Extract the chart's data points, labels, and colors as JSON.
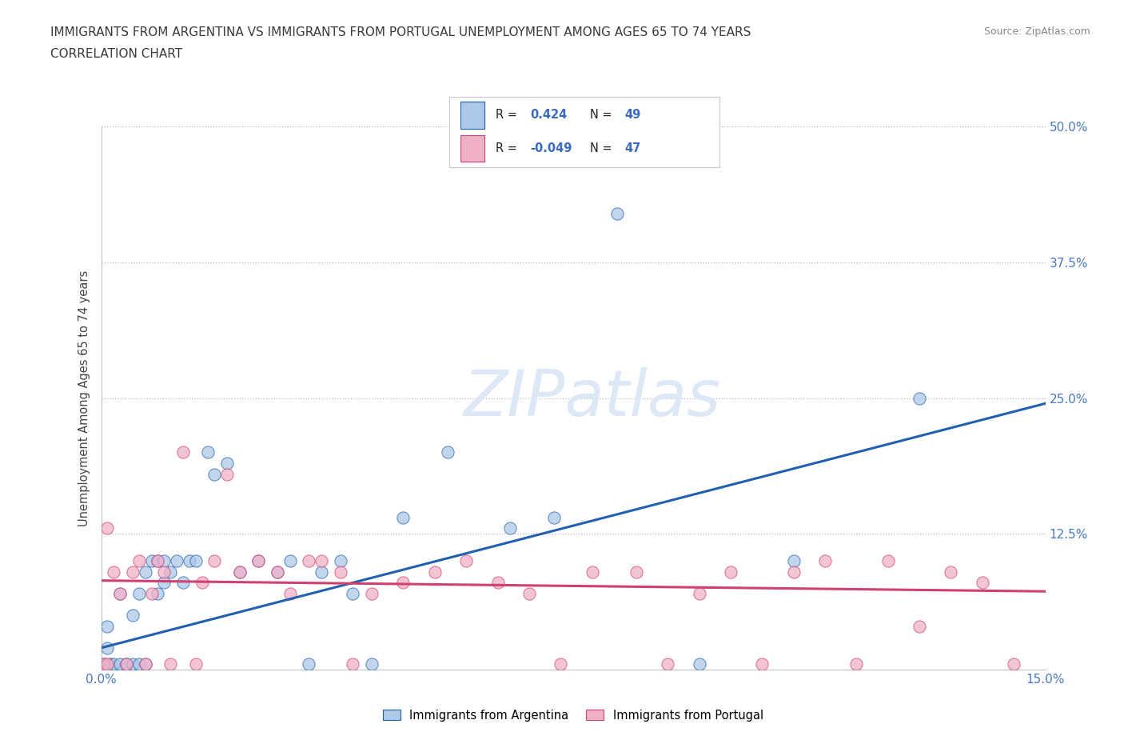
{
  "title_line1": "IMMIGRANTS FROM ARGENTINA VS IMMIGRANTS FROM PORTUGAL UNEMPLOYMENT AMONG AGES 65 TO 74 YEARS",
  "title_line2": "CORRELATION CHART",
  "source_text": "Source: ZipAtlas.com",
  "ylabel": "Unemployment Among Ages 65 to 74 years",
  "xlim": [
    0.0,
    0.15
  ],
  "ylim": [
    0.0,
    0.5
  ],
  "xticks": [
    0.0,
    0.025,
    0.05,
    0.075,
    0.1,
    0.125,
    0.15
  ],
  "xtick_labels": [
    "0.0%",
    "",
    "",
    "",
    "",
    "",
    "15.0%"
  ],
  "ytick_labels": [
    "",
    "12.5%",
    "25.0%",
    "37.5%",
    "50.0%"
  ],
  "yticks": [
    0.0,
    0.125,
    0.25,
    0.375,
    0.5
  ],
  "r_argentina": 0.424,
  "n_argentina": 49,
  "r_portugal": -0.049,
  "n_portugal": 47,
  "color_argentina": "#adc8e8",
  "color_portugal": "#f0b0c8",
  "line_color_argentina": "#2060b0",
  "line_color_portugal": "#d04070",
  "watermark_color": "#dce8f5",
  "title_color": "#3a3a3a",
  "axis_color": "#4878c0",
  "legend_n_color": "#3a6abf",
  "argentina_x": [
    0.0005,
    0.0008,
    0.001,
    0.001,
    0.001,
    0.001,
    0.0015,
    0.002,
    0.002,
    0.003,
    0.003,
    0.004,
    0.004,
    0.005,
    0.005,
    0.006,
    0.006,
    0.007,
    0.007,
    0.008,
    0.009,
    0.009,
    0.01,
    0.01,
    0.011,
    0.012,
    0.013,
    0.014,
    0.015,
    0.017,
    0.018,
    0.02,
    0.022,
    0.025,
    0.028,
    0.03,
    0.033,
    0.035,
    0.038,
    0.04,
    0.043,
    0.048,
    0.055,
    0.065,
    0.072,
    0.082,
    0.095,
    0.11,
    0.13
  ],
  "argentina_y": [
    0.005,
    0.0,
    0.0,
    0.02,
    0.0,
    0.04,
    0.005,
    0.0,
    0.005,
    0.005,
    0.07,
    0.005,
    0.005,
    0.05,
    0.005,
    0.07,
    0.005,
    0.09,
    0.005,
    0.1,
    0.07,
    0.1,
    0.08,
    0.1,
    0.09,
    0.1,
    0.08,
    0.1,
    0.1,
    0.2,
    0.18,
    0.19,
    0.09,
    0.1,
    0.09,
    0.1,
    0.005,
    0.09,
    0.1,
    0.07,
    0.005,
    0.14,
    0.2,
    0.13,
    0.14,
    0.42,
    0.005,
    0.1,
    0.25
  ],
  "portugal_x": [
    0.0005,
    0.001,
    0.001,
    0.002,
    0.003,
    0.004,
    0.005,
    0.006,
    0.007,
    0.008,
    0.009,
    0.01,
    0.011,
    0.013,
    0.015,
    0.016,
    0.018,
    0.02,
    0.022,
    0.025,
    0.028,
    0.03,
    0.033,
    0.035,
    0.038,
    0.04,
    0.043,
    0.048,
    0.053,
    0.058,
    0.063,
    0.068,
    0.073,
    0.078,
    0.085,
    0.09,
    0.095,
    0.1,
    0.105,
    0.11,
    0.115,
    0.12,
    0.125,
    0.13,
    0.135,
    0.14,
    0.145
  ],
  "portugal_y": [
    0.005,
    0.13,
    0.005,
    0.09,
    0.07,
    0.005,
    0.09,
    0.1,
    0.005,
    0.07,
    0.1,
    0.09,
    0.005,
    0.2,
    0.005,
    0.08,
    0.1,
    0.18,
    0.09,
    0.1,
    0.09,
    0.07,
    0.1,
    0.1,
    0.09,
    0.005,
    0.07,
    0.08,
    0.09,
    0.1,
    0.08,
    0.07,
    0.005,
    0.09,
    0.09,
    0.005,
    0.07,
    0.09,
    0.005,
    0.09,
    0.1,
    0.005,
    0.1,
    0.04,
    0.09,
    0.08,
    0.005
  ],
  "arg_line_x": [
    0.0,
    0.15
  ],
  "arg_line_y": [
    0.02,
    0.245
  ],
  "por_line_x": [
    0.0,
    0.15
  ],
  "por_line_y": [
    0.082,
    0.072
  ]
}
